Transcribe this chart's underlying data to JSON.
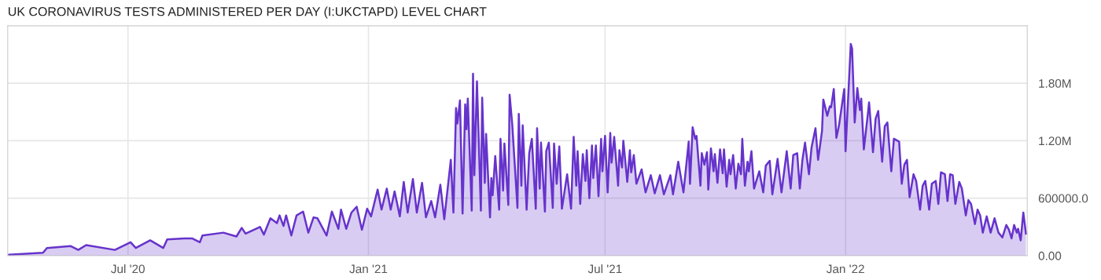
{
  "chart_data": {
    "type": "area",
    "title": "UK CORONAVIRUS TESTS ADMINISTERED PER DAY (I:UKCTAPD) LEVEL CHART",
    "x": [
      "2020-04-01",
      "2020-04-27",
      "2020-04-30",
      "2020-05-18",
      "2020-05-24",
      "2020-05-30",
      "2020-06-21",
      "2020-07-03",
      "2020-07-07",
      "2020-07-18",
      "2020-07-28",
      "2020-07-31",
      "2020-08-13",
      "2020-08-19",
      "2020-08-25",
      "2020-08-27",
      "2020-09-12",
      "2020-09-22",
      "2020-09-26",
      "2020-09-29",
      "2020-10-10",
      "2020-10-13",
      "2020-10-18",
      "2020-10-23",
      "2020-10-25",
      "2020-10-28",
      "2020-10-30",
      "2020-11-03",
      "2020-11-07",
      "2020-11-12",
      "2020-11-16",
      "2020-11-20",
      "2020-11-23",
      "2020-11-30",
      "2020-12-04",
      "2020-12-09",
      "2020-12-11",
      "2020-12-15",
      "2020-12-19",
      "2020-12-23",
      "2020-12-27",
      "2020-12-31",
      "2021-01-03",
      "2021-01-08",
      "2021-01-11",
      "2021-01-15",
      "2021-01-18",
      "2021-01-21",
      "2021-01-25",
      "2021-01-28",
      "2021-01-31",
      "2021-02-04",
      "2021-02-07",
      "2021-02-11",
      "2021-02-14",
      "2021-02-18",
      "2021-02-21",
      "2021-02-25",
      "2021-02-28",
      "2021-03-05",
      "2021-03-07",
      "2021-03-09",
      "2021-03-10",
      "2021-03-12",
      "2021-03-14",
      "2021-03-16",
      "2021-03-17",
      "2021-03-18",
      "2021-03-21",
      "2021-03-22",
      "2021-03-23",
      "2021-03-25",
      "2021-03-28",
      "2021-03-29",
      "2021-03-31",
      "2021-04-01",
      "2021-04-04",
      "2021-04-05",
      "2021-04-06",
      "2021-04-08",
      "2021-04-11",
      "2021-04-12",
      "2021-04-14",
      "2021-04-15",
      "2021-04-18",
      "2021-04-19",
      "2021-04-21",
      "2021-04-25",
      "2021-04-26",
      "2021-04-28",
      "2021-04-29",
      "2021-05-02",
      "2021-05-04",
      "2021-05-06",
      "2021-05-09",
      "2021-05-10",
      "2021-05-12",
      "2021-05-13",
      "2021-05-16",
      "2021-05-17",
      "2021-05-19",
      "2021-05-22",
      "2021-05-23",
      "2021-05-25",
      "2021-05-27",
      "2021-05-29",
      "2021-06-02",
      "2021-06-05",
      "2021-06-07",
      "2021-06-09",
      "2021-06-10",
      "2021-06-12",
      "2021-06-14",
      "2021-06-16",
      "2021-06-17",
      "2021-06-19",
      "2021-06-21",
      "2021-06-22",
      "2021-06-24",
      "2021-06-26",
      "2021-06-28",
      "2021-06-29",
      "2021-07-01",
      "2021-07-03",
      "2021-07-05",
      "2021-07-06",
      "2021-07-08",
      "2021-07-11",
      "2021-07-12",
      "2021-07-14",
      "2021-07-15",
      "2021-07-18",
      "2021-07-20",
      "2021-07-21",
      "2021-07-23",
      "2021-07-25",
      "2021-07-29",
      "2021-08-01",
      "2021-08-05",
      "2021-08-08",
      "2021-08-12",
      "2021-08-15",
      "2021-08-20",
      "2021-08-22",
      "2021-08-26",
      "2021-08-30",
      "2021-09-03",
      "2021-09-04",
      "2021-09-06",
      "2021-09-08",
      "2021-09-09",
      "2021-09-12",
      "2021-09-13",
      "2021-09-15",
      "2021-09-17",
      "2021-09-18",
      "2021-09-20",
      "2021-09-22",
      "2021-09-23",
      "2021-09-25",
      "2021-09-27",
      "2021-09-29",
      "2021-09-30",
      "2021-10-02",
      "2021-10-04",
      "2021-10-05",
      "2021-10-07",
      "2021-10-09",
      "2021-10-11",
      "2021-10-13",
      "2021-10-14",
      "2021-10-16",
      "2021-10-18",
      "2021-10-19",
      "2021-10-21",
      "2021-10-23",
      "2021-10-27",
      "2021-10-30",
      "2021-11-01",
      "2021-11-04",
      "2021-11-06",
      "2021-11-10",
      "2021-11-13",
      "2021-11-17",
      "2021-11-20",
      "2021-11-22",
      "2021-11-25",
      "2021-11-27",
      "2021-11-29",
      "2021-12-01",
      "2021-12-04",
      "2021-12-06",
      "2021-12-09",
      "2021-12-11",
      "2021-12-14",
      "2021-12-15",
      "2021-12-18",
      "2021-12-20",
      "2021-12-21",
      "2021-12-23",
      "2021-12-25",
      "2021-12-27",
      "2021-12-29",
      "2021-12-31",
      "2022-01-01",
      "2022-01-05",
      "2022-01-06",
      "2022-01-08",
      "2022-01-10",
      "2022-01-12",
      "2022-01-13",
      "2022-01-15",
      "2022-01-18",
      "2022-01-19",
      "2022-01-22",
      "2022-01-24",
      "2022-01-26",
      "2022-01-29",
      "2022-01-31",
      "2022-02-02",
      "2022-02-05",
      "2022-02-07",
      "2022-02-11",
      "2022-02-13",
      "2022-02-15",
      "2022-02-17",
      "2022-02-19",
      "2022-02-22",
      "2022-02-24",
      "2022-02-27",
      "2022-03-01",
      "2022-03-03",
      "2022-03-06",
      "2022-03-08",
      "2022-03-11",
      "2022-03-13",
      "2022-03-15",
      "2022-03-18",
      "2022-03-20",
      "2022-03-22",
      "2022-03-24",
      "2022-03-26",
      "2022-03-29",
      "2022-03-31",
      "2022-04-03",
      "2022-04-05",
      "2022-04-07",
      "2022-04-10",
      "2022-04-12",
      "2022-04-14",
      "2022-04-16",
      "2022-04-19",
      "2022-04-22",
      "2022-04-25",
      "2022-04-28",
      "2022-05-01",
      "2022-05-04",
      "2022-05-06",
      "2022-05-08",
      "2022-05-10",
      "2022-05-12",
      "2022-05-13",
      "2022-05-15",
      "2022-05-17",
      "2022-05-19"
    ],
    "series": [
      {
        "color": "#6633cc",
        "values": [
          10000,
          30000,
          80000,
          100000,
          60000,
          110000,
          60000,
          140000,
          80000,
          160000,
          80000,
          170000,
          180000,
          180000,
          140000,
          210000,
          240000,
          200000,
          290000,
          230000,
          300000,
          220000,
          390000,
          340000,
          420000,
          310000,
          420000,
          210000,
          420000,
          460000,
          240000,
          400000,
          390000,
          210000,
          460000,
          280000,
          480000,
          280000,
          450000,
          510000,
          270000,
          490000,
          410000,
          690000,
          480000,
          700000,
          480000,
          670000,
          410000,
          770000,
          450000,
          800000,
          450000,
          760000,
          400000,
          570000,
          400000,
          740000,
          380000,
          1000000,
          450000,
          1540000,
          1380000,
          1620000,
          440000,
          1580000,
          1320000,
          1640000,
          470000,
          1900000,
          840000,
          1820000,
          470000,
          1650000,
          760000,
          1270000,
          400000,
          810000,
          630000,
          1040000,
          480000,
          1220000,
          680000,
          1170000,
          530000,
          1680000,
          1370000,
          500000,
          1480000,
          730000,
          1360000,
          480000,
          1070000,
          1220000,
          490000,
          1330000,
          700000,
          1180000,
          460000,
          1090000,
          1180000,
          500000,
          1170000,
          750000,
          1140000,
          490000,
          850000,
          490000,
          1240000,
          730000,
          1090000,
          540000,
          1060000,
          780000,
          1100000,
          600000,
          1150000,
          810000,
          1150000,
          620000,
          1220000,
          880000,
          1250000,
          660000,
          1280000,
          970000,
          1240000,
          730000,
          1100000,
          920000,
          1200000,
          770000,
          1100000,
          870000,
          1050000,
          750000,
          900000,
          660000,
          840000,
          650000,
          840000,
          640000,
          840000,
          640000,
          980000,
          660000,
          1190000,
          750000,
          1340000,
          1220000,
          1250000,
          730000,
          1070000,
          950000,
          1080000,
          690000,
          1120000,
          880000,
          1060000,
          760000,
          1110000,
          860000,
          1110000,
          720000,
          1000000,
          850000,
          1050000,
          700000,
          960000,
          850000,
          1220000,
          730000,
          980000,
          880000,
          1090000,
          700000,
          880000,
          660000,
          940000,
          990000,
          640000,
          1010000,
          660000,
          1090000,
          700000,
          1050000,
          1070000,
          700000,
          1000000,
          1180000,
          850000,
          1130000,
          1330000,
          1000000,
          1300000,
          1630000,
          1460000,
          1560000,
          1550000,
          1740000,
          1230000,
          1360000,
          1550000,
          1740000,
          1090000,
          2210000,
          2160000,
          1390000,
          1750000,
          1520000,
          1640000,
          1110000,
          1470000,
          1600000,
          1080000,
          1430000,
          1510000,
          980000,
          1350000,
          1390000,
          880000,
          1220000,
          1190000,
          750000,
          950000,
          1000000,
          610000,
          850000,
          780000,
          480000,
          730000,
          780000,
          480000,
          750000,
          780000,
          540000,
          870000,
          850000,
          570000,
          850000,
          840000,
          540000,
          770000,
          700000,
          420000,
          580000,
          540000,
          330000,
          480000,
          420000,
          240000,
          410000,
          240000,
          390000,
          240000,
          190000,
          320000,
          270000,
          180000,
          320000,
          240000,
          280000,
          160000,
          450000,
          230000
        ]
      }
    ],
    "xlim": [
      "2020-03-31",
      "2022-05-20"
    ],
    "xticks": [
      {
        "value": "2020-07-01",
        "label": "Jul '20"
      },
      {
        "value": "2021-01-01",
        "label": "Jan '21"
      },
      {
        "value": "2021-07-01",
        "label": "Jul '21"
      },
      {
        "value": "2022-01-01",
        "label": "Jan '22"
      }
    ],
    "ylim": [
      0,
      2400000
    ],
    "yticks": [
      {
        "value": 0,
        "label": "0.00"
      },
      {
        "value": 600000,
        "label": "600000.0"
      },
      {
        "value": 1200000,
        "label": "1.20M"
      },
      {
        "value": 1800000,
        "label": "1.80M"
      }
    ],
    "grid": true
  }
}
